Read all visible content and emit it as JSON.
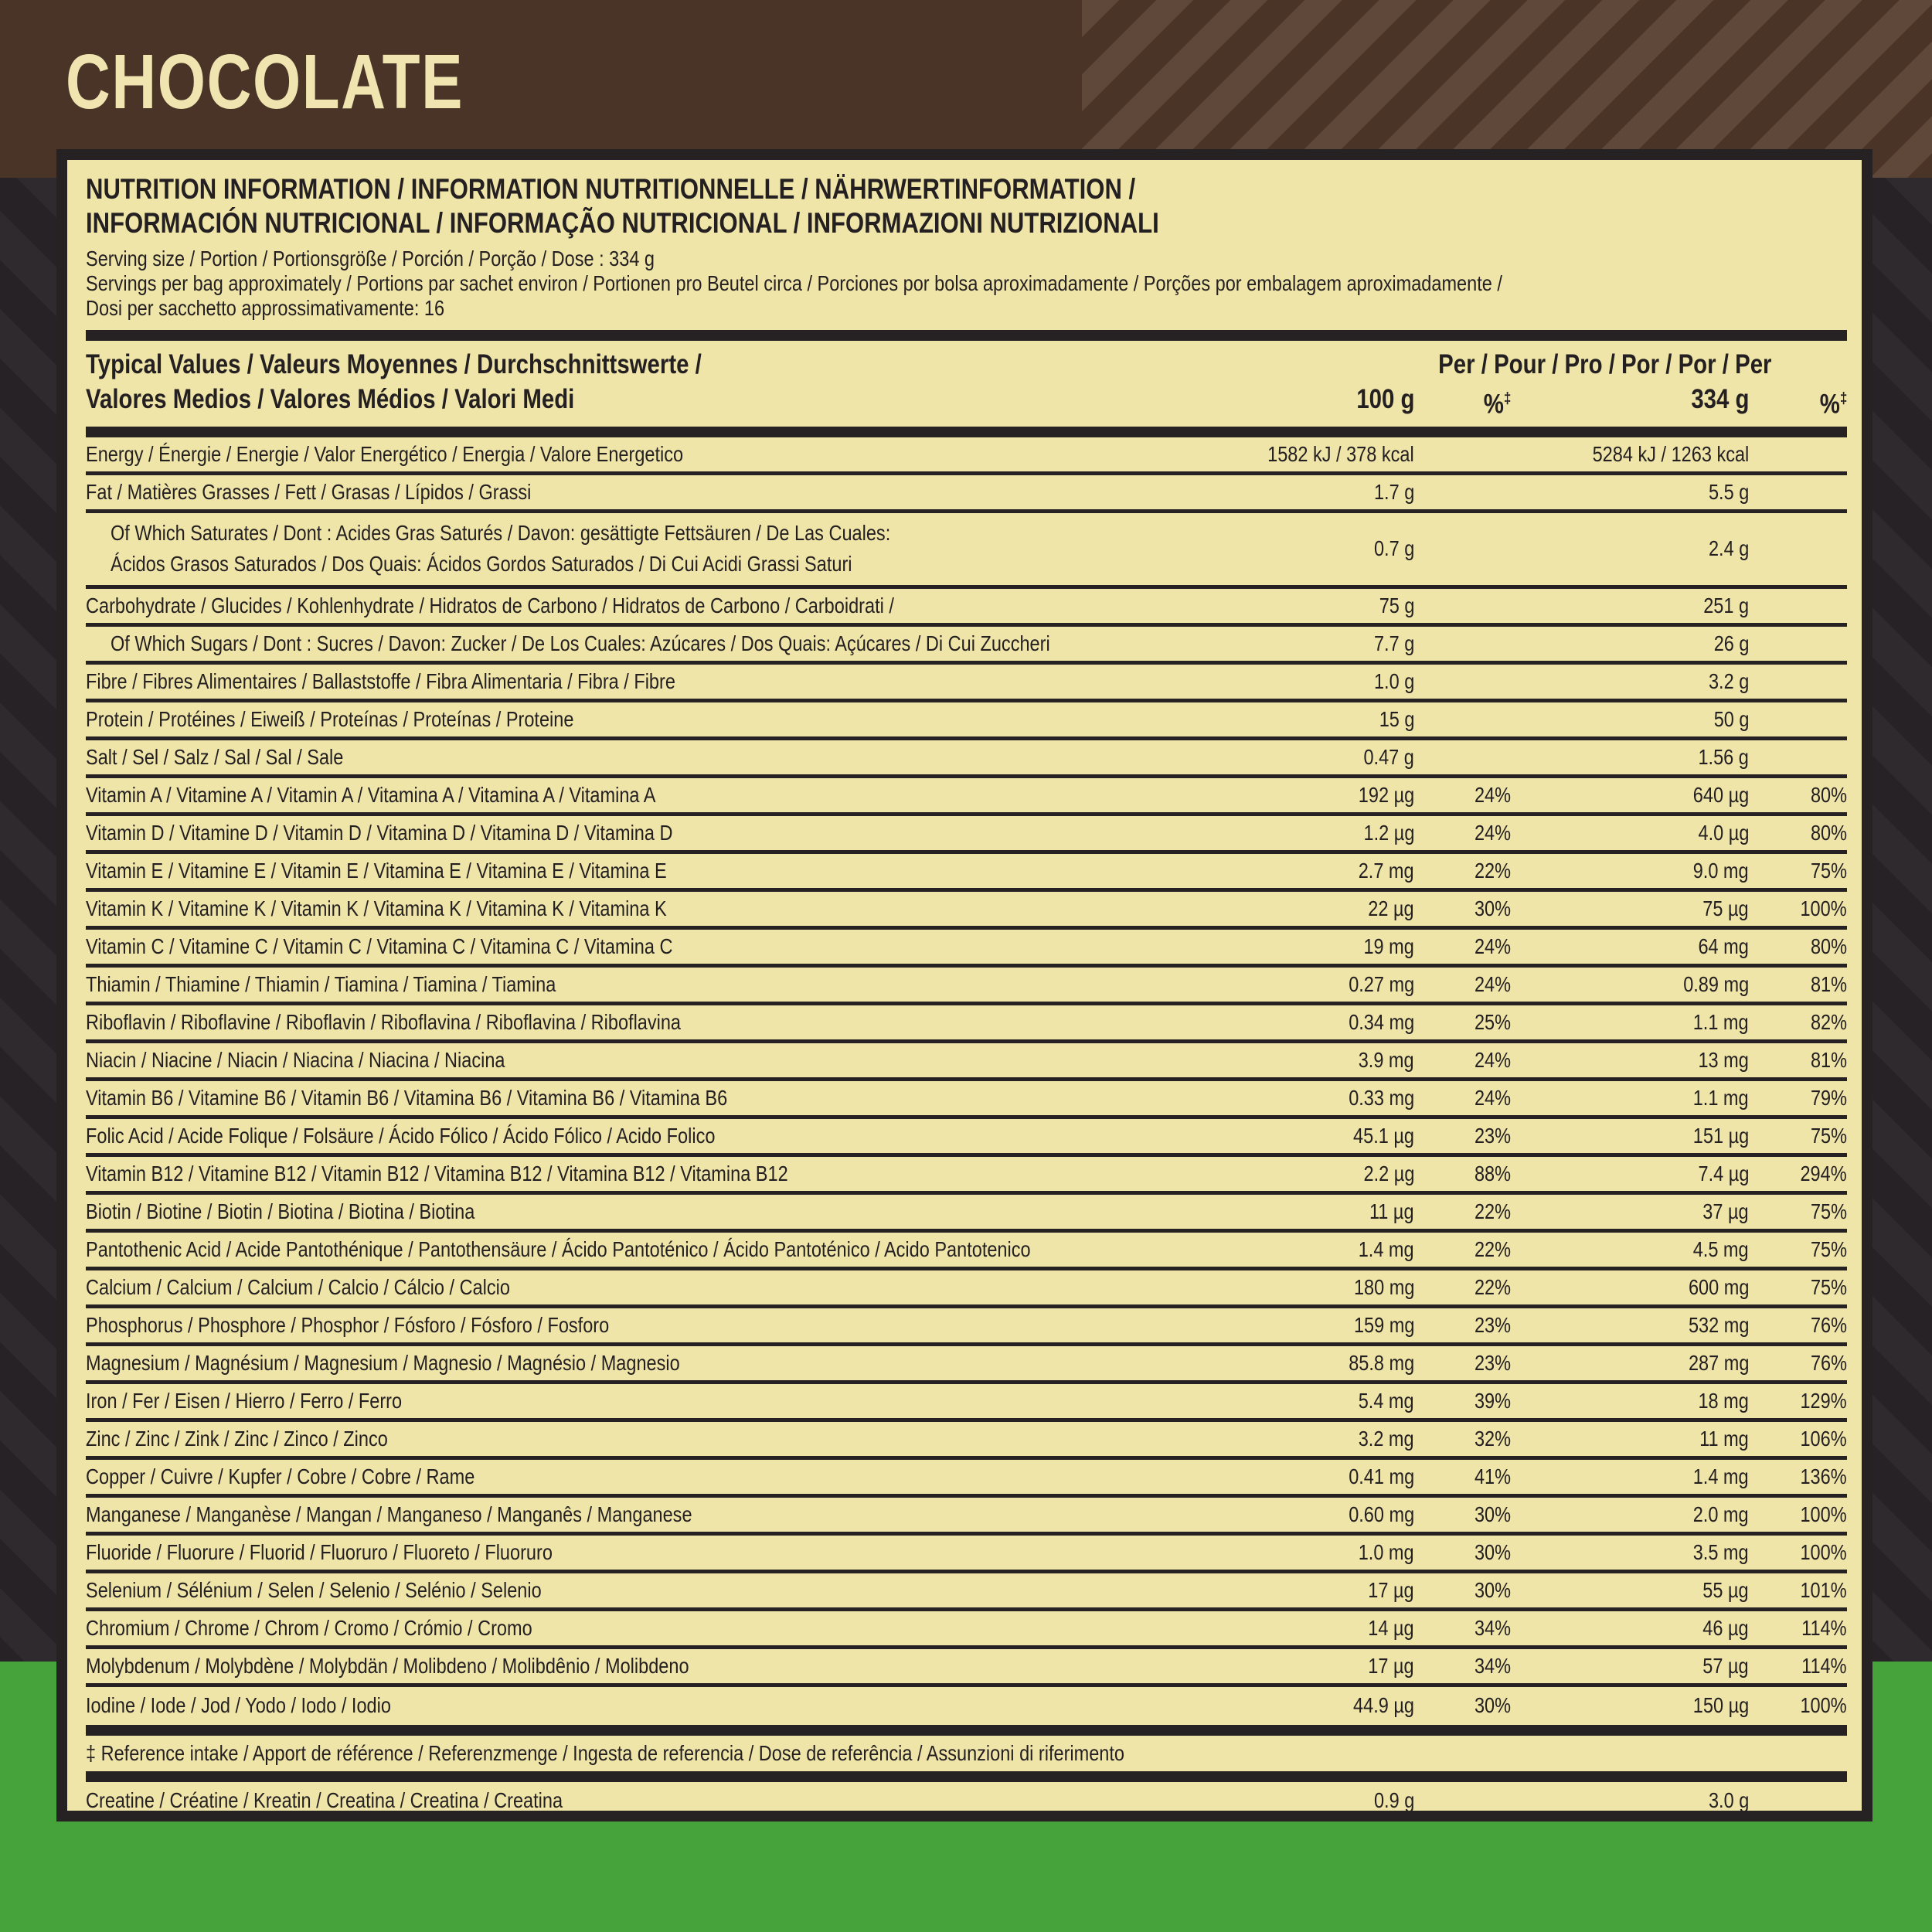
{
  "flavor": {
    "title": "CHOCOLATE"
  },
  "colors": {
    "top_band_brown": "#4a3327",
    "panel_cream": "#f0e5a9",
    "background_dark": "#272226",
    "bottom_band_green": "#46a33c",
    "text_dark": "#242021",
    "title_cream": "#f0e5b0"
  },
  "panel": {
    "heading_line1": "NUTRITION INFORMATION / INFORMATION NUTRITIONNELLE / NÄHRWERTINFORMATION /",
    "heading_line2": "INFORMACIÓN NUTRICIONAL / INFORMAÇÃO NUTRICIONAL / INFORMAZIONI NUTRIZIONALI",
    "serving_line1": "Serving size / Portion / Portionsgröße / Porción / Porção / Dose : 334 g",
    "serving_line2": "Servings per bag approximately / Portions par sachet environ / Portionen pro Beutel circa / Porciones por bolsa aproximadamente / Porções por embalagem aproximadamente /",
    "serving_line3": "Dosi per sacchetto approssimativamente: 16"
  },
  "table": {
    "header": {
      "label_line1": "Typical Values / Valeurs Moyennes / Durchschnittswerte /",
      "label_line2": "Valores Medios / Valores Médios / Valori Medi",
      "per_line": "Per / Pour / Pro / Por / Por / Per",
      "col_100g": "100 g",
      "col_pct": "%",
      "col_334g": "334 g",
      "col_pct2": "%",
      "dagger": "‡"
    },
    "rows": [
      {
        "label": "Energy / Énergie / Energie / Valor Energético / Energia / Valore Energetico",
        "per100": "1582 kJ / 378 kcal",
        "pct100": "",
        "per334": "5284 kJ / 1263 kcal",
        "pct334": ""
      },
      {
        "label": "Fat / Matières Grasses / Fett / Grasas / Lípidos / Grassi",
        "per100": "1.7 g",
        "pct100": "",
        "per334": "5.5 g",
        "pct334": ""
      },
      {
        "label": "Of Which Saturates / Dont : Acides Gras Saturés / Davon: gesättigte Fettsäuren / De Las Cuales:",
        "label2": "Ácidos Grasos Saturados / Dos Quais: Ácidos Gordos Saturados / Di Cui Acidi Grassi Saturi",
        "indent": true,
        "per100": "0.7 g",
        "pct100": "",
        "per334": "2.4 g",
        "pct334": ""
      },
      {
        "label": "Carbohydrate / Glucides / Kohlenhydrate / Hidratos de Carbono / Hidratos de Carbono / Carboidrati /",
        "per100": "75 g",
        "pct100": "",
        "per334": "251 g",
        "pct334": ""
      },
      {
        "label": "Of Which Sugars / Dont : Sucres / Davon: Zucker / De Los Cuales: Azúcares / Dos Quais: Açúcares / Di Cui Zuccheri",
        "indent": true,
        "per100": "7.7 g",
        "pct100": "",
        "per334": "26 g",
        "pct334": ""
      },
      {
        "label": "Fibre / Fibres Alimentaires / Ballaststoffe / Fibra Alimentaria / Fibra / Fibre",
        "per100": "1.0 g",
        "pct100": "",
        "per334": "3.2 g",
        "pct334": ""
      },
      {
        "label": "Protein / Protéines / Eiweiß / Proteínas / Proteínas / Proteine",
        "per100": "15 g",
        "pct100": "",
        "per334": "50 g",
        "pct334": ""
      },
      {
        "label": "Salt / Sel / Salz / Sal / Sal / Sale",
        "per100": "0.47 g",
        "pct100": "",
        "per334": "1.56 g",
        "pct334": ""
      },
      {
        "label": "Vitamin A / Vitamine A / Vitamin A / Vitamina A / Vitamina A / Vitamina A",
        "per100": "192 µg",
        "pct100": "24%",
        "per334": "640 µg",
        "pct334": "80%"
      },
      {
        "label": "Vitamin D / Vitamine D / Vitamin D / Vitamina D / Vitamina D / Vitamina D",
        "per100": "1.2 µg",
        "pct100": "24%",
        "per334": "4.0 µg",
        "pct334": "80%"
      },
      {
        "label": "Vitamin E / Vitamine E / Vitamin E / Vitamina E / Vitamina E / Vitamina E",
        "per100": "2.7 mg",
        "pct100": "22%",
        "per334": "9.0 mg",
        "pct334": "75%"
      },
      {
        "label": "Vitamin K / Vitamine K / Vitamin K / Vitamina K / Vitamina K / Vitamina K",
        "per100": "22 µg",
        "pct100": "30%",
        "per334": "75 µg",
        "pct334": "100%"
      },
      {
        "label": "Vitamin C / Vitamine C / Vitamin C / Vitamina C / Vitamina C / Vitamina C",
        "per100": "19 mg",
        "pct100": "24%",
        "per334": "64 mg",
        "pct334": "80%"
      },
      {
        "label": "Thiamin / Thiamine / Thiamin / Tiamina / Tiamina / Tiamina",
        "per100": "0.27 mg",
        "pct100": "24%",
        "per334": "0.89 mg",
        "pct334": "81%"
      },
      {
        "label": "Riboflavin / Riboflavine / Riboflavin / Riboflavina / Riboflavina / Riboflavina",
        "per100": "0.34 mg",
        "pct100": "25%",
        "per334": "1.1 mg",
        "pct334": "82%"
      },
      {
        "label": "Niacin / Niacine / Niacin / Niacina / Niacina / Niacina",
        "per100": "3.9 mg",
        "pct100": "24%",
        "per334": "13 mg",
        "pct334": "81%"
      },
      {
        "label": "Vitamin B6 / Vitamine B6 / Vitamin B6 / Vitamina B6 / Vitamina B6 / Vitamina B6",
        "per100": "0.33 mg",
        "pct100": "24%",
        "per334": "1.1 mg",
        "pct334": "79%"
      },
      {
        "label": "Folic Acid / Acide Folique / Folsäure / Ácido Fólico / Ácido Fólico / Acido Folico",
        "per100": "45.1 µg",
        "pct100": "23%",
        "per334": "151 µg",
        "pct334": "75%"
      },
      {
        "label": "Vitamin B12 / Vitamine B12 / Vitamin B12 / Vitamina B12 / Vitamina B12 / Vitamina B12",
        "per100": "2.2 µg",
        "pct100": "88%",
        "per334": "7.4 µg",
        "pct334": "294%"
      },
      {
        "label": "Biotin / Biotine / Biotin / Biotina / Biotina / Biotina",
        "per100": "11 µg",
        "pct100": "22%",
        "per334": "37 µg",
        "pct334": "75%"
      },
      {
        "label": "Pantothenic Acid / Acide Pantothénique / Pantothensäure / Ácido Pantoténico / Ácido Pantoténico / Acido Pantotenico",
        "per100": "1.4 mg",
        "pct100": "22%",
        "per334": "4.5 mg",
        "pct334": "75%"
      },
      {
        "label": "Calcium / Calcium / Calcium / Calcio / Cálcio / Calcio",
        "per100": "180 mg",
        "pct100": "22%",
        "per334": "600 mg",
        "pct334": "75%"
      },
      {
        "label": "Phosphorus / Phosphore / Phosphor / Fósforo / Fósforo / Fosforo",
        "per100": "159 mg",
        "pct100": "23%",
        "per334": "532 mg",
        "pct334": "76%"
      },
      {
        "label": "Magnesium / Magnésium / Magnesium / Magnesio / Magnésio / Magnesio",
        "per100": "85.8 mg",
        "pct100": "23%",
        "per334": "287 mg",
        "pct334": "76%"
      },
      {
        "label": "Iron / Fer / Eisen / Hierro / Ferro / Ferro",
        "per100": "5.4 mg",
        "pct100": "39%",
        "per334": "18 mg",
        "pct334": "129%"
      },
      {
        "label": "Zinc / Zinc / Zink / Zinc / Zinco / Zinco",
        "per100": "3.2 mg",
        "pct100": "32%",
        "per334": "11 mg",
        "pct334": "106%"
      },
      {
        "label": "Copper / Cuivre / Kupfer / Cobre / Cobre / Rame",
        "per100": "0.41 mg",
        "pct100": "41%",
        "per334": "1.4 mg",
        "pct334": "136%"
      },
      {
        "label": "Manganese / Manganèse / Mangan / Manganeso / Manganês / Manganese",
        "per100": "0.60 mg",
        "pct100": "30%",
        "per334": "2.0 mg",
        "pct334": "100%"
      },
      {
        "label": "Fluoride / Fluorure / Fluorid / Fluoruro / Fluoreto / Fluoruro",
        "per100": "1.0 mg",
        "pct100": "30%",
        "per334": "3.5 mg",
        "pct334": "100%"
      },
      {
        "label": "Selenium / Sélénium / Selen / Selenio / Selénio / Selenio",
        "per100": "17 µg",
        "pct100": "30%",
        "per334": "55 µg",
        "pct334": "101%"
      },
      {
        "label": "Chromium / Chrome / Chrom / Cromo / Crómio / Cromo",
        "per100": "14 µg",
        "pct100": "34%",
        "per334": "46 µg",
        "pct334": "114%"
      },
      {
        "label": "Molybdenum / Molybdène / Molybdän / Molibdeno / Molibdênio / Molibdeno",
        "per100": "17 µg",
        "pct100": "34%",
        "per334": "57 µg",
        "pct334": "114%"
      },
      {
        "label": "Iodine / Iode / Jod / Yodo / Iodo / Iodio",
        "per100": "44.9 µg",
        "pct100": "30%",
        "per334": "150 µg",
        "pct334": "100%"
      }
    ],
    "note": "‡ Reference intake / Apport de référence / Referenzmenge / Ingesta de referencia / Dose de referência / Assunzioni di riferimento",
    "footer_rows": [
      {
        "label": "Creatine / Créatine / Kreatin / Creatina / Creatina / Creatina",
        "per100": "0.9 g",
        "pct100": "",
        "per334": "3.0 g",
        "pct334": ""
      }
    ]
  }
}
